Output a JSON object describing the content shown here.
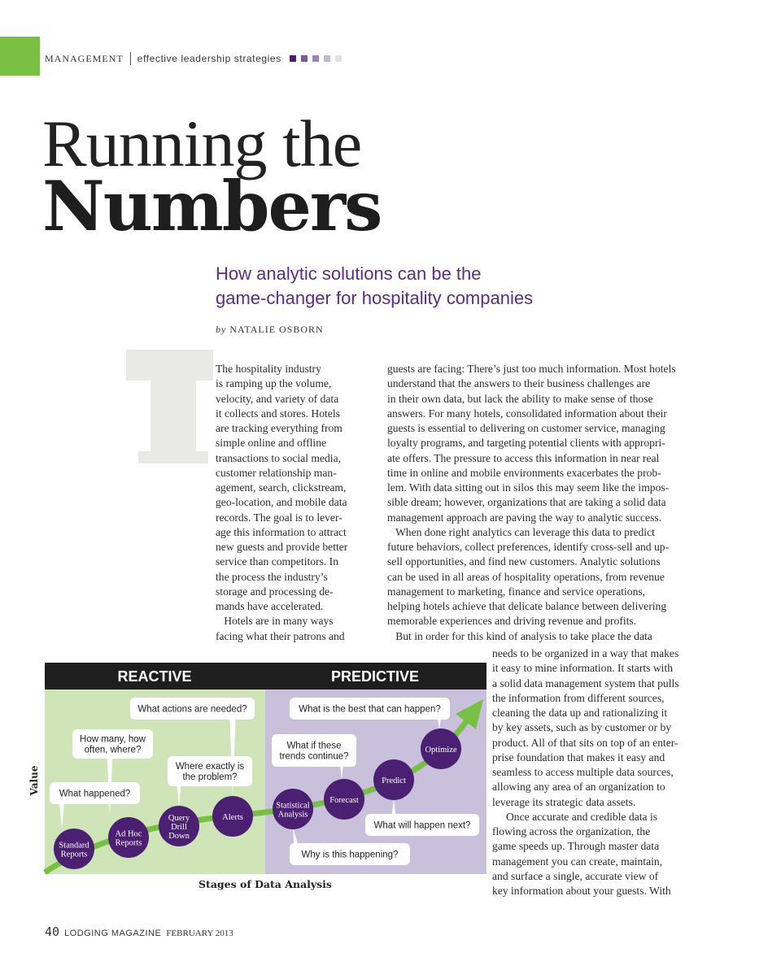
{
  "header": {
    "section": "MANAGEMENT",
    "tagline": "effective leadership strategies",
    "accent_color": "#7ac143",
    "squares": [
      "#4b1f72",
      "#7a5a9c",
      "#9c86b8",
      "#c3b8d6",
      "#e2e0e8"
    ]
  },
  "article": {
    "title_line1": "Running the",
    "title_line2": "Numbers",
    "subtitle_line1": "How analytic solutions can be the",
    "subtitle_line2": "game-changer for hospitality companies",
    "byline_prefix": "by",
    "author": "NATALIE OSBORN",
    "drop_cap": "T",
    "col1": [
      "The hospitality industry",
      "is ramping up the volume,",
      "velocity, and variety of data",
      "it collects and stores. Hotels",
      "are tracking everything from",
      "simple online and offline",
      "transactions to social media,",
      "customer relationship man-",
      "agement, search, clickstream,",
      "geo-location, and mobile data",
      "records. The goal is to lever-",
      "age this information to attract",
      "new guests and provide better",
      "service than competitors. In",
      "the process the industry’s",
      "storage and processing de-",
      "mands have accelerated.",
      "   Hotels are in many ways",
      "facing what their patrons and"
    ],
    "col2": [
      "guests are facing: There’s just too much information. Most hotels",
      "understand that the answers to their business challenges are",
      "in their own data, but lack the ability to make sense of those",
      "answers. For many hotels, consolidated information about their",
      "guests is essential to delivering on customer service, managing",
      "loyalty programs, and targeting potential clients with appropri-",
      "ate offers. The pressure to access this information in near real",
      "time in online and mobile environments exacerbates the prob-",
      "lem. With data sitting out in silos this may seem like the impos-",
      "sible dream; however, organizations that are taking a solid data",
      "management approach are paving the way to analytic success.",
      "   When done right analytics can leverage this data to predict",
      "future behaviors, collect preferences, identify cross-sell and up-",
      "sell opportunities, and find new customers. Analytic solutions",
      "can be used in all areas of hospitality operations, from revenue",
      "management to marketing, finance and service operations,",
      "helping hotels achieve that delicate balance between delivering",
      "memorable experiences and driving revenue and profits.",
      "   But in order for this kind of analysis to take place the data"
    ],
    "col3": [
      "needs to be organized in a way that makes",
      "it easy to mine information. It starts with",
      "a solid data management system that pulls",
      "the information from different sources,",
      "cleaning the data up and rationalizing it",
      "by key assets, such as by customer or by",
      "product. All of that sits on top of an enter-",
      "prise foundation that makes it easy and",
      "seamless to access multiple data sources,",
      "allowing any area of an organization to",
      "leverage its strategic data assets.",
      "     Once accurate and credible data is",
      "flowing across the organization, the",
      "game speeds up. Through master data",
      "management you can create, maintain,",
      "and surface a single, accurate view of",
      "key information about your guests. With"
    ]
  },
  "diagram": {
    "header_left": "REACTIVE",
    "header_right": "PREDICTIVE",
    "y_label": "Value",
    "x_label": "Stages of Data Analysis",
    "colors": {
      "reactive_bg": "#cfe5b8",
      "predictive_bg": "#c9c0dc",
      "node": "#4b1f72",
      "arrow": "#77c043",
      "header": "#1e1e1e"
    },
    "nodes": [
      [
        "Standard",
        "Reports"
      ],
      [
        "Ad Hoc",
        "Reports"
      ],
      [
        "Query",
        "Drill",
        "Down"
      ],
      [
        "Alerts"
      ],
      [
        "Statistical",
        "Analysis"
      ],
      [
        "Forecast"
      ],
      [
        "Predict"
      ],
      [
        "Optimize"
      ]
    ],
    "questions": [
      [
        "What happened?"
      ],
      [
        "How many, how",
        "often, where?"
      ],
      [
        "Where exactly is",
        "the problem?"
      ],
      [
        "What actions are needed?"
      ],
      [
        "Why is this happening?"
      ],
      [
        "What if these",
        "trends continue?"
      ],
      [
        "What will happen next?"
      ],
      [
        "What is the best that can happen?"
      ]
    ]
  },
  "footer": {
    "page_number": "40",
    "magazine": "LODGING MAGAZINE",
    "issue": "FEBRUARY 2013"
  }
}
